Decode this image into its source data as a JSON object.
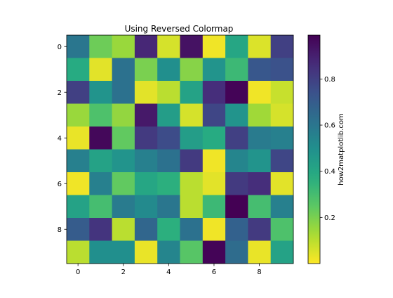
{
  "chart_data": {
    "type": "heatmap",
    "title": "Using Reversed Colormap",
    "colormap": "viridis_r",
    "rows": 10,
    "cols": 10,
    "values": [
      [
        0.6,
        0.22,
        0.15,
        0.88,
        0.06,
        0.94,
        0.02,
        0.4,
        0.05,
        0.8
      ],
      [
        0.38,
        0.04,
        0.62,
        0.2,
        0.5,
        0.18,
        0.48,
        0.32,
        0.72,
        0.74
      ],
      [
        0.8,
        0.48,
        0.62,
        0.04,
        0.1,
        0.42,
        0.86,
        0.98,
        0.02,
        0.08
      ],
      [
        0.15,
        0.28,
        0.16,
        0.92,
        0.44,
        0.06,
        0.78,
        0.48,
        0.14,
        0.06
      ],
      [
        0.03,
        0.97,
        0.24,
        0.82,
        0.76,
        0.44,
        0.38,
        0.8,
        0.58,
        0.56
      ],
      [
        0.56,
        0.42,
        0.48,
        0.56,
        0.62,
        0.82,
        0.02,
        0.54,
        0.48,
        0.78
      ],
      [
        0.02,
        0.56,
        0.24,
        0.4,
        0.36,
        0.1,
        0.04,
        0.82,
        0.86,
        0.04
      ],
      [
        0.42,
        0.3,
        0.58,
        0.52,
        0.6,
        0.1,
        0.32,
        0.99,
        0.3,
        0.56
      ],
      [
        0.7,
        0.84,
        0.1,
        0.66,
        0.36,
        0.62,
        0.02,
        0.68,
        0.82,
        0.28
      ],
      [
        0.1,
        0.5,
        0.5,
        0.03,
        0.54,
        0.26,
        0.98,
        0.64,
        0.03,
        0.42
      ]
    ],
    "x_ticks": [
      "0",
      "2",
      "4",
      "6",
      "8"
    ],
    "y_ticks": [
      "0",
      "2",
      "4",
      "6",
      "8"
    ],
    "colorbar": {
      "label": "how2matplotlib.com",
      "range": [
        0.0,
        0.99
      ],
      "ticks": [
        "0.2",
        "0.4",
        "0.6",
        "0.8"
      ]
    }
  }
}
